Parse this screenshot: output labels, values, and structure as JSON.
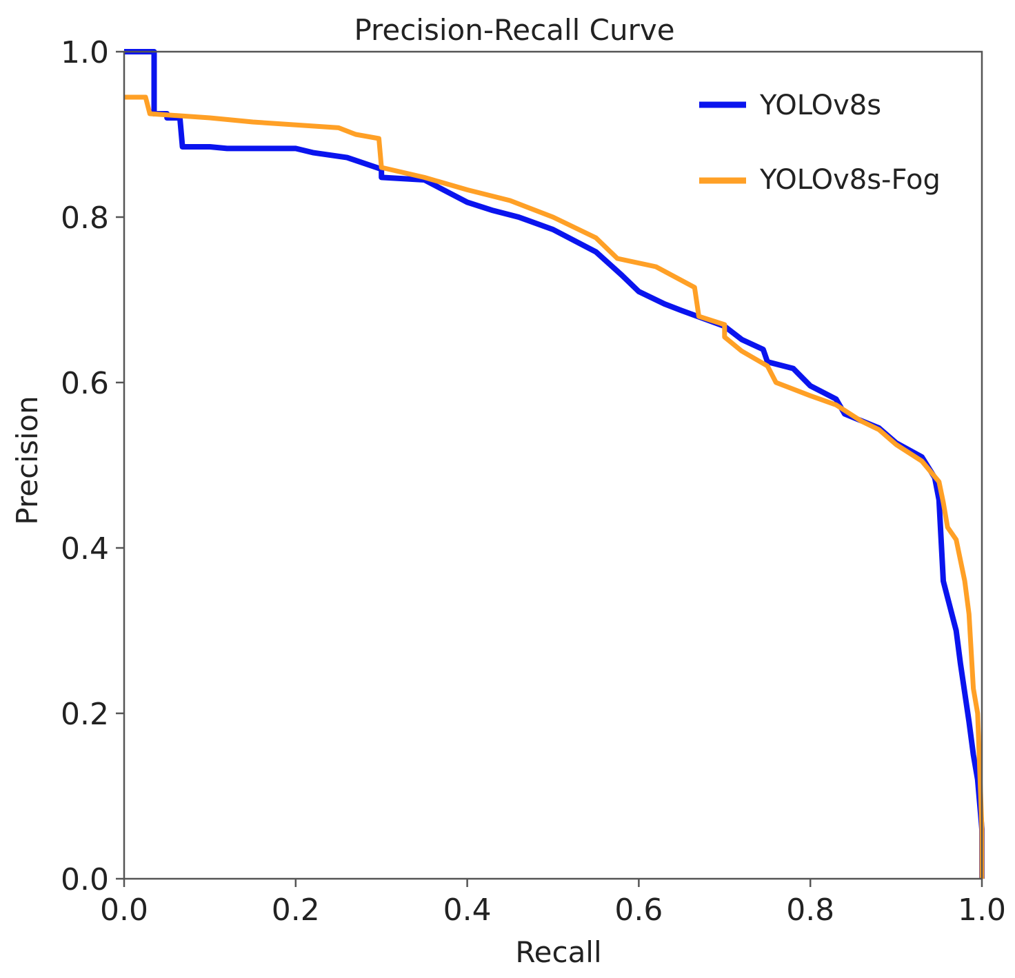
{
  "chart_data": {
    "type": "line",
    "title": "Precision-Recall Curve",
    "xlabel": "Recall",
    "ylabel": "Precision",
    "xlim": [
      0,
      1
    ],
    "ylim": [
      0,
      1
    ],
    "xticks": [
      "0.0",
      "0.2",
      "0.4",
      "0.6",
      "0.8",
      "1.0"
    ],
    "yticks": [
      "0.0",
      "0.2",
      "0.4",
      "0.6",
      "0.8",
      "1.0"
    ],
    "legend_position": "top-right",
    "grid": false,
    "series": [
      {
        "name": "YOLOv8s",
        "color": "#0a14ee",
        "points": [
          [
            0.0,
            1.0
          ],
          [
            0.035,
            1.0
          ],
          [
            0.035,
            0.925
          ],
          [
            0.05,
            0.925
          ],
          [
            0.05,
            0.92
          ],
          [
            0.065,
            0.92
          ],
          [
            0.068,
            0.885
          ],
          [
            0.1,
            0.885
          ],
          [
            0.12,
            0.883
          ],
          [
            0.2,
            0.883
          ],
          [
            0.22,
            0.878
          ],
          [
            0.26,
            0.872
          ],
          [
            0.3,
            0.858
          ],
          [
            0.3,
            0.848
          ],
          [
            0.35,
            0.845
          ],
          [
            0.4,
            0.818
          ],
          [
            0.43,
            0.808
          ],
          [
            0.46,
            0.8
          ],
          [
            0.5,
            0.785
          ],
          [
            0.55,
            0.758
          ],
          [
            0.58,
            0.73
          ],
          [
            0.6,
            0.71
          ],
          [
            0.63,
            0.695
          ],
          [
            0.65,
            0.687
          ],
          [
            0.7,
            0.668
          ],
          [
            0.72,
            0.652
          ],
          [
            0.745,
            0.64
          ],
          [
            0.75,
            0.625
          ],
          [
            0.78,
            0.617
          ],
          [
            0.8,
            0.596
          ],
          [
            0.83,
            0.58
          ],
          [
            0.84,
            0.562
          ],
          [
            0.88,
            0.545
          ],
          [
            0.9,
            0.527
          ],
          [
            0.93,
            0.51
          ],
          [
            0.945,
            0.485
          ],
          [
            0.95,
            0.458
          ],
          [
            0.955,
            0.36
          ],
          [
            0.96,
            0.34
          ],
          [
            0.97,
            0.3
          ],
          [
            0.975,
            0.26
          ],
          [
            0.985,
            0.19
          ],
          [
            0.99,
            0.15
          ],
          [
            0.995,
            0.12
          ],
          [
            1.0,
            0.06
          ],
          [
            1.0,
            0.0
          ]
        ]
      },
      {
        "name": "YOLOv8s-Fog",
        "color": "#ffa026",
        "points": [
          [
            0.0,
            0.945
          ],
          [
            0.025,
            0.945
          ],
          [
            0.03,
            0.925
          ],
          [
            0.1,
            0.92
          ],
          [
            0.15,
            0.915
          ],
          [
            0.25,
            0.908
          ],
          [
            0.27,
            0.9
          ],
          [
            0.297,
            0.895
          ],
          [
            0.3,
            0.86
          ],
          [
            0.35,
            0.848
          ],
          [
            0.4,
            0.833
          ],
          [
            0.45,
            0.82
          ],
          [
            0.5,
            0.8
          ],
          [
            0.55,
            0.775
          ],
          [
            0.575,
            0.75
          ],
          [
            0.62,
            0.74
          ],
          [
            0.665,
            0.715
          ],
          [
            0.67,
            0.68
          ],
          [
            0.7,
            0.67
          ],
          [
            0.7,
            0.655
          ],
          [
            0.72,
            0.638
          ],
          [
            0.75,
            0.62
          ],
          [
            0.76,
            0.6
          ],
          [
            0.8,
            0.584
          ],
          [
            0.83,
            0.573
          ],
          [
            0.86,
            0.553
          ],
          [
            0.88,
            0.543
          ],
          [
            0.9,
            0.525
          ],
          [
            0.93,
            0.505
          ],
          [
            0.95,
            0.48
          ],
          [
            0.955,
            0.455
          ],
          [
            0.96,
            0.425
          ],
          [
            0.97,
            0.41
          ],
          [
            0.98,
            0.36
          ],
          [
            0.985,
            0.32
          ],
          [
            0.99,
            0.23
          ],
          [
            0.995,
            0.2
          ],
          [
            1.0,
            0.06
          ],
          [
            1.0,
            0.0
          ]
        ]
      }
    ]
  }
}
